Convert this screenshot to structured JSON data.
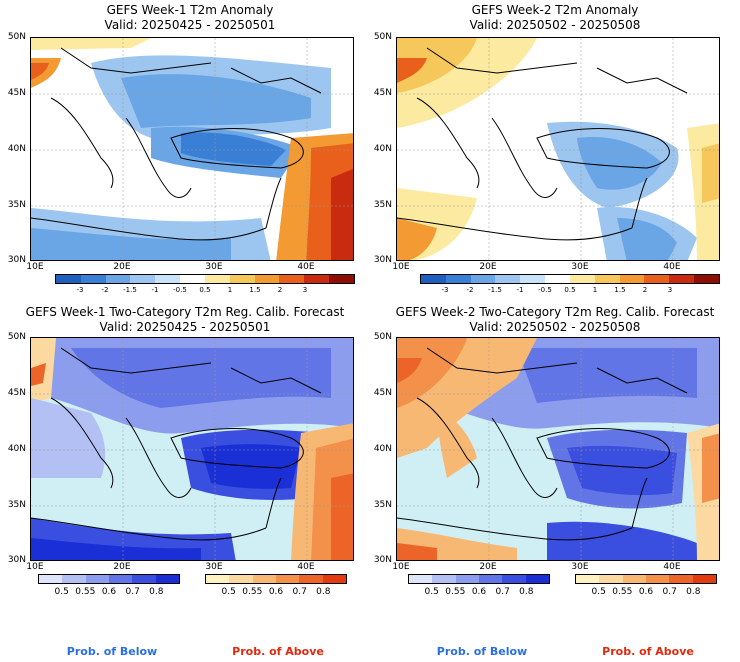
{
  "panels": {
    "tl": {
      "title": "GEFS Week-1 T2m Anomaly",
      "valid": "Valid: 20250425 - 20250501"
    },
    "tr": {
      "title": "GEFS Week-2 T2m Anomaly",
      "valid": "Valid: 20250502 - 20250508"
    },
    "bl": {
      "title": "GEFS Week-1 Two-Category T2m Reg. Calib. Forecast",
      "valid": "Valid: 20250425 - 20250501"
    },
    "br": {
      "title": "GEFS Week-2 Two-Category T2m Reg. Calib. Forecast",
      "valid": "Valid: 20250502 - 20250508"
    }
  },
  "lat_labels": [
    "50N",
    "45N",
    "40N",
    "35N",
    "30N"
  ],
  "lon_labels": [
    "10E",
    "20E",
    "30E",
    "40E"
  ],
  "anomaly_colorbar": {
    "ticks": [
      "-3",
      "-2",
      "-1.5",
      "-1",
      "-0.5",
      "0.5",
      "1",
      "1.5",
      "2",
      "3"
    ],
    "colors": [
      "#1f5fbf",
      "#3a7fd6",
      "#6aa5e6",
      "#9cc6f0",
      "#c8e3f7",
      "#ffffff",
      "#fbeaa0",
      "#f6c75b",
      "#f39a32",
      "#e8601c",
      "#c92b10",
      "#8e0d05"
    ]
  },
  "prob_below_colorbar": {
    "ticks": [
      "0.5",
      "0.55",
      "0.6",
      "0.7",
      "0.8"
    ],
    "colors": [
      "#dfe6fb",
      "#b3c0f3",
      "#8c9ded",
      "#6275e6",
      "#3a4ee0",
      "#1a2fd6"
    ]
  },
  "prob_above_colorbar": {
    "ticks": [
      "0.5",
      "0.55",
      "0.6",
      "0.7",
      "0.8"
    ],
    "colors": [
      "#fff2c0",
      "#fbd9a0",
      "#f7b874",
      "#f3904a",
      "#ec6428",
      "#e23b0f"
    ]
  },
  "footer": {
    "below_left": "Prob. of Below",
    "above_left": "Prob. of Above",
    "below_right": "Prob. of Below",
    "above_right": "Prob. of Above"
  },
  "colors": {
    "below_text": "#2a6fdf",
    "above_text": "#e02a10",
    "sea": "#cfeff5"
  }
}
